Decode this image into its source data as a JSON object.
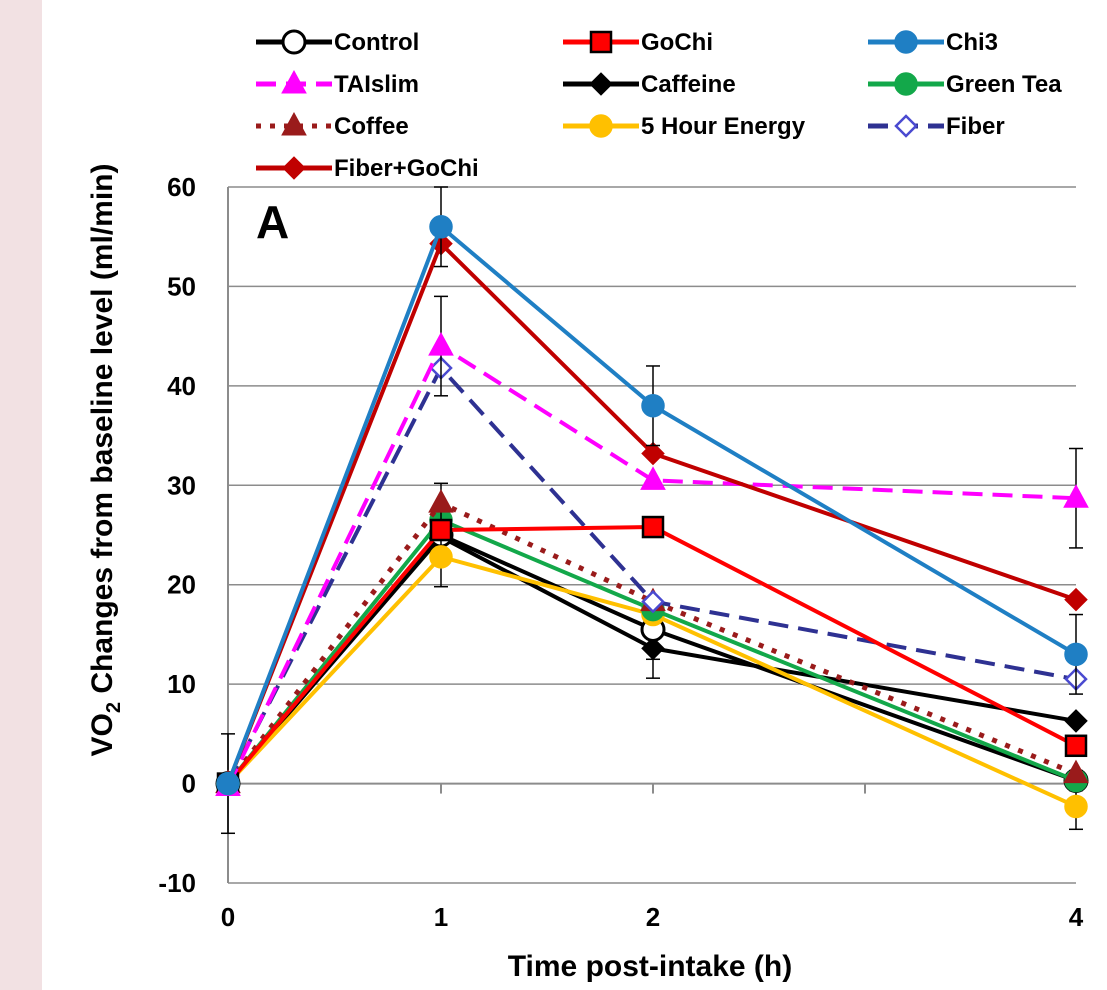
{
  "chart_data": {
    "type": "line",
    "panel_label": "A",
    "xlabel": "Time post-intake (h)",
    "ylabel_prefix": "VO",
    "ylabel_sub": "2",
    "ylabel_suffix": " Changes from baseline level (ml/min)",
    "x": [
      0,
      1,
      2,
      4
    ],
    "x_tick_labels": [
      "0",
      "1",
      "2",
      "4"
    ],
    "ylim": [
      -10,
      60
    ],
    "y_ticks": [
      -10,
      0,
      10,
      20,
      30,
      40,
      50,
      60
    ],
    "grid": true,
    "legend_position": "top",
    "series": [
      {
        "name": "Control",
        "values": [
          0,
          25,
          15.5,
          0.3
        ],
        "color": "#000000",
        "line": "solid",
        "marker": "circle-open",
        "error": [
          5,
          3,
          3,
          1
        ]
      },
      {
        "name": "GoChi",
        "values": [
          0,
          25.5,
          25.8,
          3.8
        ],
        "color": "#ff0000",
        "line": "solid",
        "marker": "square",
        "error": [
          0,
          0,
          0,
          0
        ]
      },
      {
        "name": "Chi3",
        "values": [
          0,
          56,
          38,
          13
        ],
        "color": "#1f7fc4",
        "line": "solid",
        "marker": "circle",
        "error": [
          0,
          4,
          4,
          4
        ]
      },
      {
        "name": "TAIslim",
        "values": [
          -0.3,
          44,
          30.5,
          28.7
        ],
        "color": "#ff00ff",
        "line": "dashed",
        "marker": "triangle",
        "error": [
          0,
          5,
          0,
          5
        ]
      },
      {
        "name": "Caffeine",
        "values": [
          0,
          24.8,
          13.6,
          6.3
        ],
        "color": "#000000",
        "line": "solid",
        "marker": "diamond",
        "error": [
          0,
          0,
          3,
          0
        ]
      },
      {
        "name": "Green Tea",
        "values": [
          0,
          26.5,
          17.5,
          0.3
        ],
        "color": "#13a84a",
        "line": "solid",
        "marker": "circle",
        "error": [
          0,
          0,
          0,
          0
        ]
      },
      {
        "name": "Coffee",
        "values": [
          0,
          28.2,
          18.3,
          1
        ],
        "color": "#9a1b1b",
        "line": "dotted",
        "marker": "triangle",
        "error": [
          0,
          2,
          0,
          0
        ]
      },
      {
        "name": "5 Hour Energy",
        "values": [
          0,
          22.8,
          17,
          -2.3
        ],
        "color": "#ffc000",
        "line": "solid",
        "marker": "circle",
        "error": [
          0,
          3,
          0,
          2.3
        ]
      },
      {
        "name": "Fiber",
        "values": [
          0,
          41.8,
          18.3,
          10.5
        ],
        "color": "#2e3192",
        "line": "dashed",
        "marker": "diamond-open",
        "error": [
          0,
          0,
          0,
          0
        ]
      },
      {
        "name": "Fiber+GoChi",
        "values": [
          0,
          54.3,
          33.2,
          18.5
        ],
        "color": "#c00000",
        "line": "solid",
        "marker": "diamond",
        "error": [
          0,
          0,
          0,
          0
        ]
      }
    ]
  }
}
